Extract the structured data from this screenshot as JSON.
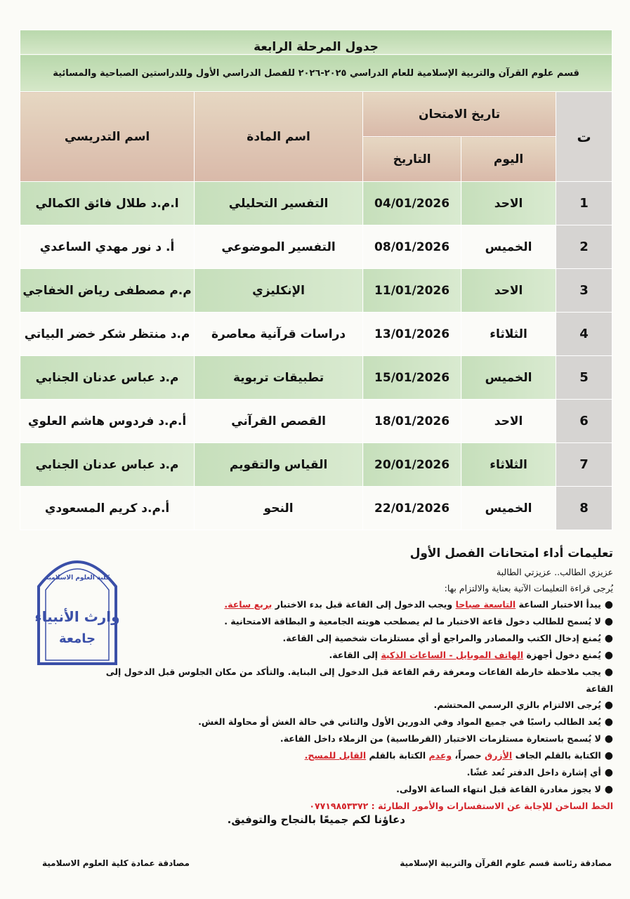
{
  "table": {
    "title": "جدول المرحلة الرابعة",
    "subtitle": "قسم علوم القرآن والتربية الإسلامية  للعام الدراسي ٢٠٢٥-٢٠٢٦ للفصل الدراسي الأول وللدراستين الصباحية والمسائية",
    "headers": {
      "num": "ت",
      "exam_date": "تاريخ الامتحان",
      "day": "اليوم",
      "date": "التاريخ",
      "subject": "اسم المادة",
      "teacher": "اسم التدريسي"
    },
    "rows": [
      [
        1,
        "الاحد",
        "04/01/2026",
        "التفسير التحليلي",
        "ا.م.د طلال فائق الكمالي"
      ],
      [
        2,
        "الخميس",
        "08/01/2026",
        "التفسير الموضوعي",
        "أ. د نور مهدي الساعدي"
      ],
      [
        3,
        "الاحد",
        "11/01/2026",
        "الإنكليزي",
        "م.م مصطفى رياض الخفاجي"
      ],
      [
        4,
        "الثلاثاء",
        "13/01/2026",
        "دراسات قرآنية معاصرة",
        "م.د منتظر شكر خضر البياتي"
      ],
      [
        5,
        "الخميس",
        "15/01/2026",
        "تطبيقات تربوية",
        "م.د عباس عدنان   الجنابي"
      ],
      [
        6,
        "الاحد",
        "18/01/2026",
        "القصص القرآني",
        "أ.م.د فردوس هاشم العلوي"
      ],
      [
        7,
        "الثلاثاء",
        "20/01/2026",
        "القياس والتقويم",
        "م.د عباس عدنان الجنابي"
      ],
      [
        8,
        "الخميس",
        "22/01/2026",
        "النحو",
        "أ.م.د كريم المسعودي"
      ]
    ]
  },
  "instructions": {
    "title": "تعليمات أداء امتحانات الفصل الأول",
    "greeting": "عزيزي الطالب.. عزيزتي الطالبة",
    "intro": "يُرجى قراءة التعليمات الآتية بعناية والالتزام بها:",
    "items": [
      [
        "يبدأ الاختبار الساعة ",
        "التاسعة صباحا",
        " ويجب الدخول إلى القاعة قبل بدء الاختبار ",
        "بربع ساعة."
      ],
      [
        "لا يُسمح للطالب دخول قاعة الاختبار ما لم يصطحب هويته الجامعية و البطاقة الامتحانية ."
      ],
      [
        "يُمنع إدخال الكتب والمصادر والمراجع أو أي مستلزمات شخصية إلى القاعة."
      ],
      [
        "يُمنع دخول أجهزة ",
        "الهاتف الموبايل - الساعات الذكية",
        " إلى القاعة."
      ],
      [
        "يجب ملاحظة خارطة القاعات ومعرفة رقم القاعة قبل الدخول إلى البناية. والتأكد من مكان الجلوس قبل الدخول إلى القاعة"
      ],
      [
        "يُرجى الالتزام بالزي الرسمي المحتشم."
      ],
      [
        "يُعد الطالب راسبًا في جميع المواد وفي الدورين الأول والثاني في حالة الغش أو محاولة الغش."
      ],
      [
        "لا يُسمح باستعارة مستلزمات الاختبار (القرطاسية) من الزملاء داخل القاعة."
      ],
      [
        "الكتابة بالقلم الجاف ",
        "الأزرق",
        " حصراً، ",
        "وعدم",
        " الكتابة بالقلم ",
        "القابل للمسح."
      ],
      [
        "أي إشارة داخل الدفتر تُعد غشًا."
      ],
      [
        "لا يجوز مغادرة القاعة قبل انتهاء الساعة الاولى."
      ]
    ],
    "hotline": "الخط الساخن للإجابة عن الاستفسارات والأمور الطارئة : ٠٧٧١٩٨٥٣٣٧٢"
  },
  "closing": "دعاؤنا لكم جميعًا بالنجاح والتوفيق.",
  "signatures": {
    "department": "مصادقة رئاسة قسم علوم القرآن والتربية الإسلامية",
    "dean": "مصادقة عمادة كلية العلوم الاسلامية"
  },
  "stamp": {
    "university": "وارث الأنبياء",
    "word": "جامعة",
    "college": "كلية العلوم الاسلامية"
  }
}
